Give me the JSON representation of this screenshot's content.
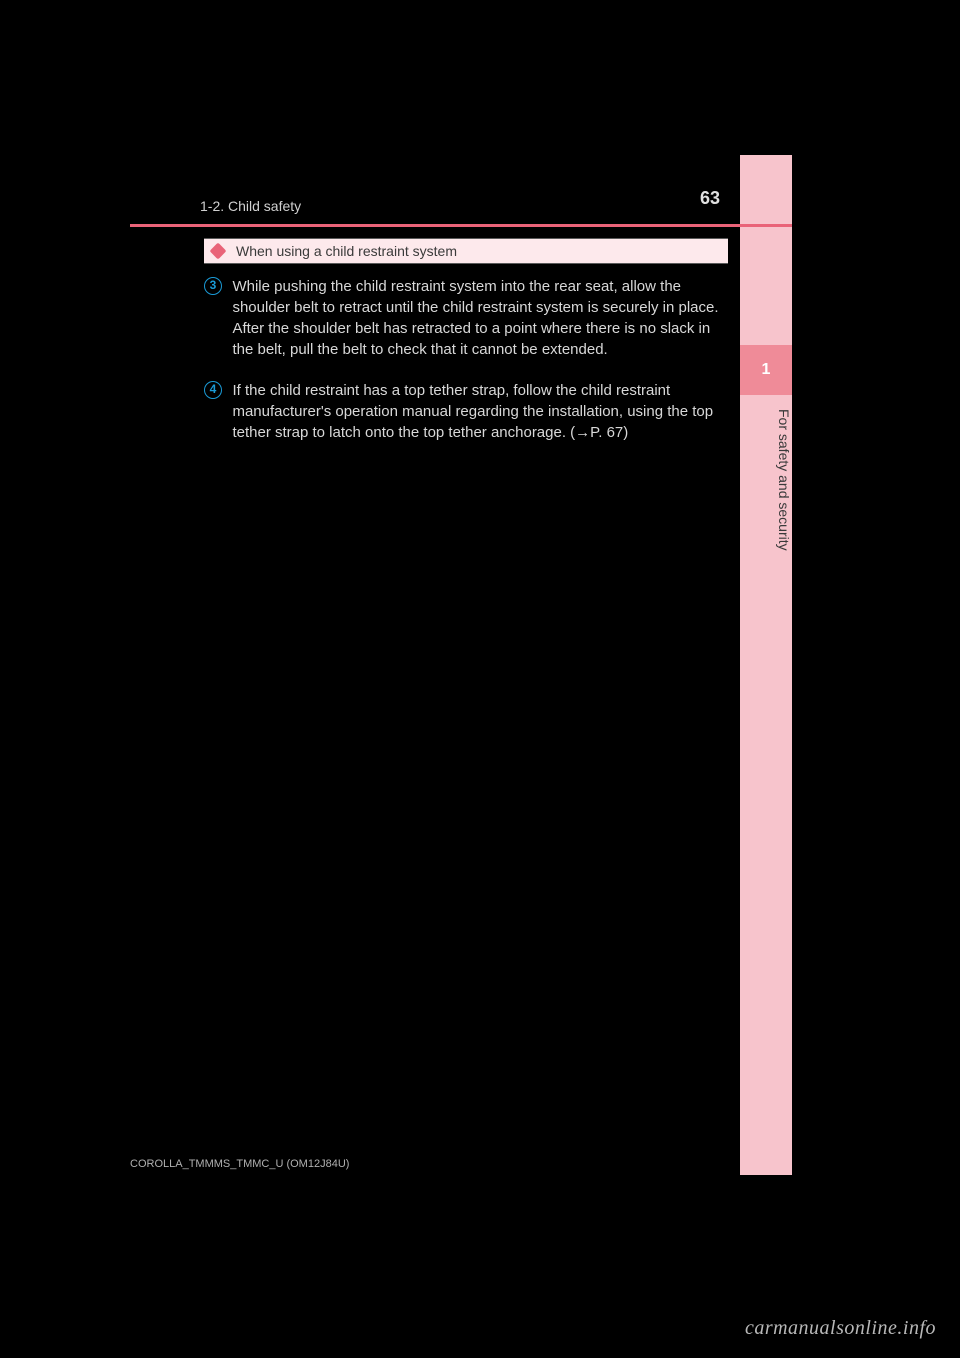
{
  "page": {
    "number": "63",
    "breadcrumb": "1-2. Child safety"
  },
  "sidebar": {
    "chapter_number": "1",
    "chapter_label": "For safety and security"
  },
  "section": {
    "title": "When using a child restraint system"
  },
  "items": [
    {
      "num": "3",
      "text": "While pushing the child restraint system into the rear seat, allow the shoulder belt to retract until the child restraint system is securely in place.\nAfter the shoulder belt has retracted to a point where there is no slack in the belt, pull the belt to check that it cannot be extended."
    },
    {
      "num": "4",
      "text": "If the child restraint has a top tether strap, follow the child restraint manufacturer's operation manual regarding the installation, using the top tether strap to latch onto the top tether anchorage. (→P. 67)"
    }
  ],
  "footer": {
    "left": "COROLLA_TMMMS_TMMC_U (OM12J84U)",
    "right": ""
  },
  "watermark": "carmanualsonline.info",
  "colors": {
    "accent": "#e96378",
    "tab_bg": "#f7c4cc",
    "tab_active": "#ef8b98",
    "circle": "#1a9ad6",
    "section_bg": "#fde9ec",
    "page_bg": "#000000"
  }
}
